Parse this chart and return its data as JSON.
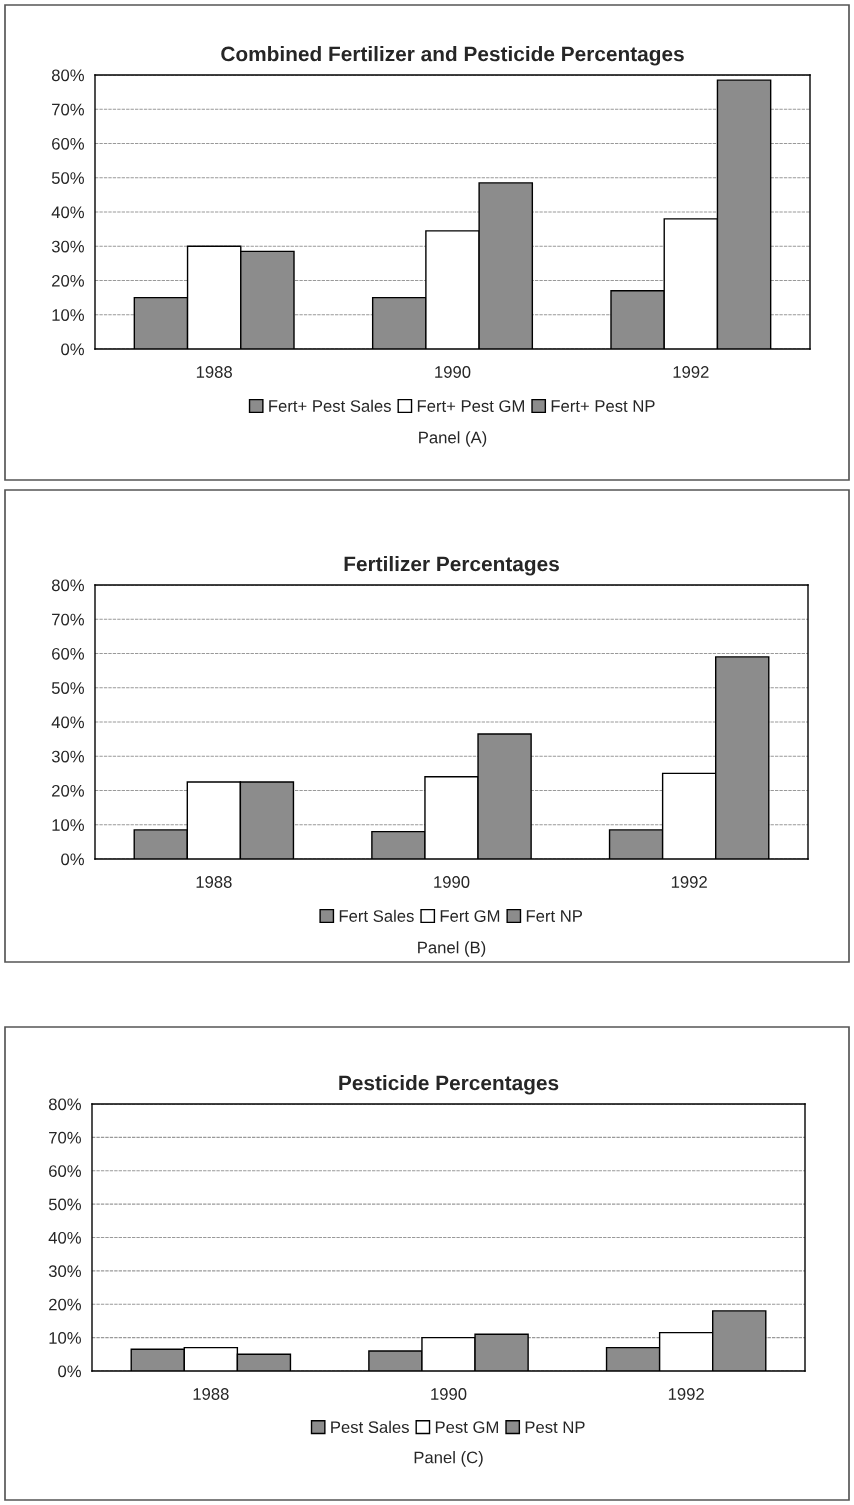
{
  "chart_data": [
    {
      "type": "bar",
      "title": "Combined Fertilizer and Pesticide Percentages",
      "categories": [
        "1988",
        "1990",
        "1992"
      ],
      "series": [
        {
          "name": "Fert+ Pest Sales",
          "color": "#8c8c8c",
          "values": [
            15,
            15,
            17
          ]
        },
        {
          "name": "Fert+ Pest GM",
          "color": "#ffffff",
          "values": [
            30,
            34.5,
            38
          ]
        },
        {
          "name": "Fert+ Pest NP",
          "color": "#8c8c8c",
          "values": [
            28.5,
            48.5,
            78.5
          ]
        }
      ],
      "ylim": [
        0,
        80
      ],
      "yticks": [
        {
          "value": 0,
          "label": "0%"
        },
        {
          "value": 10,
          "label": "10%"
        },
        {
          "value": 20,
          "label": "20%"
        },
        {
          "value": 30,
          "label": "30%"
        },
        {
          "value": 40,
          "label": "40%"
        },
        {
          "value": 50,
          "label": "50%"
        },
        {
          "value": 60,
          "label": "60%"
        },
        {
          "value": 70,
          "label": "70%"
        },
        {
          "value": 80,
          "label": "80%"
        }
      ],
      "grid": "y",
      "legend": "bottom",
      "annotations": [
        "Panel (A)"
      ]
    },
    {
      "type": "bar",
      "title": "Fertilizer Percentages",
      "categories": [
        "1988",
        "1990",
        "1992"
      ],
      "series": [
        {
          "name": "Fert Sales",
          "color": "#8c8c8c",
          "values": [
            8.5,
            8,
            8.5
          ]
        },
        {
          "name": "Fert GM",
          "color": "#ffffff",
          "values": [
            22.5,
            24,
            25
          ]
        },
        {
          "name": "Fert NP",
          "color": "#8c8c8c",
          "values": [
            22.5,
            36.5,
            59
          ]
        }
      ],
      "ylim": [
        0,
        80
      ],
      "yticks": [
        {
          "value": 0,
          "label": "0%"
        },
        {
          "value": 10,
          "label": "10%"
        },
        {
          "value": 20,
          "label": "20%"
        },
        {
          "value": 30,
          "label": "30%"
        },
        {
          "value": 40,
          "label": "40%"
        },
        {
          "value": 50,
          "label": "50%"
        },
        {
          "value": 60,
          "label": "60%"
        },
        {
          "value": 70,
          "label": "70%"
        },
        {
          "value": 80,
          "label": "80%"
        }
      ],
      "grid": "y",
      "legend": "bottom",
      "annotations": [
        "Panel (B)"
      ]
    },
    {
      "type": "bar",
      "title": "Pesticide Percentages",
      "categories": [
        "1988",
        "1990",
        "1992"
      ],
      "series": [
        {
          "name": "Pest Sales",
          "color": "#8c8c8c",
          "values": [
            6.5,
            6,
            7
          ]
        },
        {
          "name": "Pest GM",
          "color": "#ffffff",
          "values": [
            7,
            10,
            11.5
          ]
        },
        {
          "name": "Pest NP",
          "color": "#8c8c8c",
          "values": [
            5,
            11,
            18
          ]
        }
      ],
      "ylim": [
        0,
        80
      ],
      "yticks": [
        {
          "value": 0,
          "label": "0%"
        },
        {
          "value": 10,
          "label": "10%"
        },
        {
          "value": 20,
          "label": "20%"
        },
        {
          "value": 30,
          "label": "30%"
        },
        {
          "value": 40,
          "label": "40%"
        },
        {
          "value": 50,
          "label": "50%"
        },
        {
          "value": 60,
          "label": "60%"
        },
        {
          "value": 70,
          "label": "70%"
        },
        {
          "value": 80,
          "label": "80%"
        }
      ],
      "grid": "y",
      "legend": "bottom",
      "annotations": [
        "Panel (C)"
      ]
    }
  ]
}
